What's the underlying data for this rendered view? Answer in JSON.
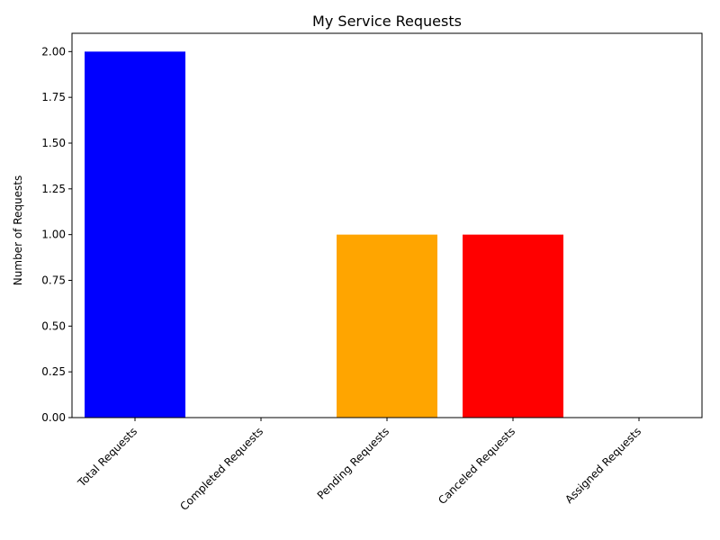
{
  "chart_data": {
    "type": "bar",
    "title": "My Service Requests",
    "xlabel": "",
    "ylabel": "Number of Requests",
    "categories": [
      "Total Requests",
      "Completed Requests",
      "Pending Requests",
      "Canceled Requests",
      "Assigned Requests"
    ],
    "values": [
      2,
      0,
      1,
      1,
      0
    ],
    "colors": [
      "#0000ff",
      "#008000",
      "#ffa500",
      "#ff0000",
      "#800080"
    ],
    "ylim": [
      0,
      2.1
    ],
    "yticks": [
      "0.00",
      "0.25",
      "0.50",
      "0.75",
      "1.00",
      "1.25",
      "1.50",
      "1.75",
      "2.00"
    ],
    "grid": false,
    "legend": "none"
  }
}
